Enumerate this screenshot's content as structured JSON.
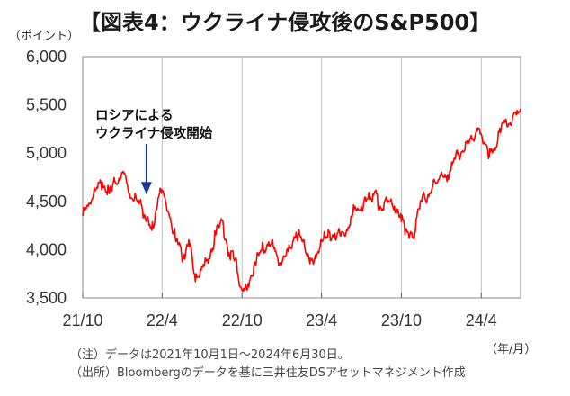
{
  "chart_data": {
    "type": "line",
    "title": "【図表4：ウクライナ侵攻後のS&P500】",
    "y_unit_label": "（ポイント）",
    "x_unit_label": "（年/月）",
    "ylim": [
      3500,
      6000
    ],
    "y_ticks": [
      "3,500",
      "4,000",
      "4,500",
      "5,000",
      "5,500",
      "6,000"
    ],
    "x_tick_labels": [
      "21/10",
      "22/4",
      "22/10",
      "23/4",
      "23/10",
      "24/4"
    ],
    "grid": "vertical",
    "series": [
      {
        "color": "#ff0000",
        "x": [
          "2021-10-01",
          "2021-10-15",
          "2021-11-01",
          "2021-11-15",
          "2021-12-01",
          "2021-12-15",
          "2022-01-03",
          "2022-01-15",
          "2022-02-01",
          "2022-02-15",
          "2022-02-24",
          "2022-03-08",
          "2022-03-29",
          "2022-04-15",
          "2022-05-01",
          "2022-05-20",
          "2022-06-01",
          "2022-06-16",
          "2022-07-01",
          "2022-07-15",
          "2022-08-01",
          "2022-08-16",
          "2022-09-01",
          "2022-09-15",
          "2022-09-30",
          "2022-10-12",
          "2022-10-31",
          "2022-11-15",
          "2022-12-01",
          "2022-12-13",
          "2022-12-30",
          "2023-01-15",
          "2023-02-02",
          "2023-02-15",
          "2023-03-01",
          "2023-03-13",
          "2023-04-01",
          "2023-04-15",
          "2023-05-01",
          "2023-05-15",
          "2023-06-01",
          "2023-06-15",
          "2023-07-01",
          "2023-07-31",
          "2023-08-15",
          "2023-09-01",
          "2023-09-15",
          "2023-10-01",
          "2023-10-27",
          "2023-11-15",
          "2023-12-01",
          "2023-12-29",
          "2024-01-15",
          "2024-02-01",
          "2024-02-15",
          "2024-03-01",
          "2024-03-28",
          "2024-04-19",
          "2024-05-01",
          "2024-05-21",
          "2024-06-01",
          "2024-06-30"
        ],
        "values": [
          4350,
          4480,
          4630,
          4700,
          4580,
          4700,
          4790,
          4580,
          4520,
          4410,
          4290,
          4200,
          4630,
          4390,
          4130,
          3910,
          4100,
          3670,
          3830,
          3860,
          4150,
          4300,
          3970,
          3900,
          3590,
          3580,
          3870,
          3990,
          4080,
          4010,
          3840,
          3980,
          4180,
          4090,
          3960,
          3850,
          4100,
          4130,
          4170,
          4140,
          4230,
          4420,
          4450,
          4590,
          4430,
          4510,
          4450,
          4290,
          4120,
          4510,
          4570,
          4770,
          4780,
          4940,
          5010,
          5100,
          5250,
          4960,
          5060,
          5310,
          5280,
          5460
        ]
      }
    ],
    "annotations": [
      {
        "text_lines": [
          "ロシアによる",
          "ウクライナ侵攻開始"
        ],
        "x": "2022-02-24",
        "y": 4580
      }
    ],
    "notes": [
      "（注）データは2021年10月1日～2024年6月30日。",
      "（出所）Bloombergのデータを基に三井住友DSアセットマネジメント作成"
    ]
  },
  "colors": {
    "line": "#ff0000",
    "arrow": "#1f3a93",
    "frame": "#888888",
    "grid": "#bfbfbf"
  }
}
